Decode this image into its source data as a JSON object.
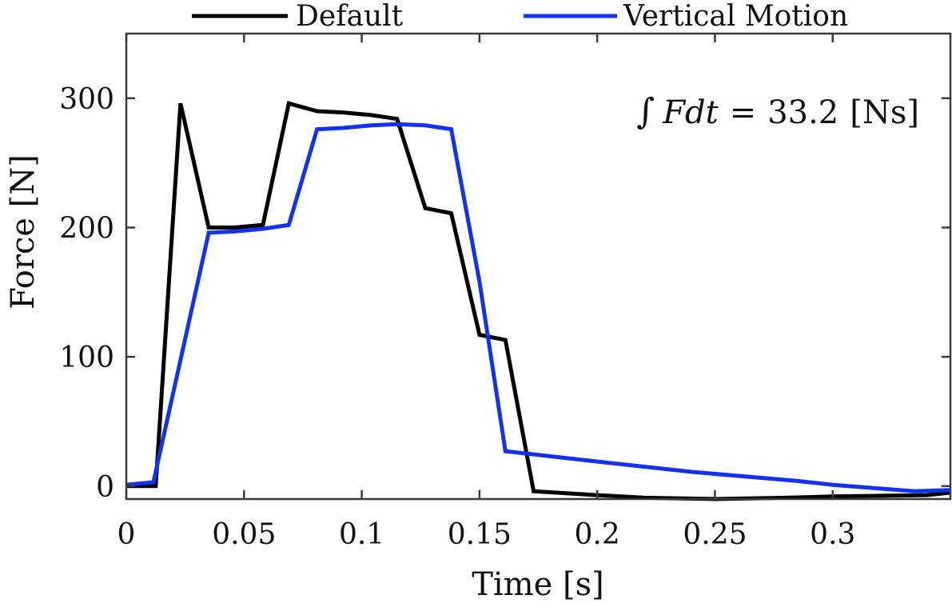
{
  "chart_data": {
    "type": "line",
    "title": "",
    "xlabel": "Time [s]",
    "ylabel": "Force [N]",
    "xlim": [
      0,
      0.35
    ],
    "ylim": [
      -10,
      350
    ],
    "xticks": [
      0,
      0.05,
      0.1,
      0.15,
      0.2,
      0.25,
      0.3
    ],
    "yticks": [
      0,
      100,
      200,
      300
    ],
    "xtick_labels": [
      "0",
      "0.05",
      "0.1",
      "0.15",
      "0.2",
      "0.25",
      "0.3"
    ],
    "ytick_labels": [
      "0",
      "100",
      "200",
      "300"
    ],
    "grid": false,
    "box": true,
    "legend_position": "top",
    "annotation": {
      "integral": "∫",
      "integrand": "Fdt",
      "equals": "=",
      "value": "33.2",
      "unit": "[Ns]"
    },
    "series": [
      {
        "name": "Default",
        "color": "#000000",
        "x": [
          0,
          0.0125,
          0.023,
          0.035,
          0.046,
          0.058,
          0.069,
          0.081,
          0.092,
          0.104,
          0.115,
          0.127,
          0.138,
          0.15,
          0.161,
          0.173,
          0.2,
          0.22,
          0.25,
          0.28,
          0.3,
          0.34,
          0.35
        ],
        "y": [
          0,
          0,
          296,
          200,
          200,
          202,
          296,
          290,
          289,
          287,
          284,
          215,
          211,
          117,
          113,
          -4,
          -7,
          -9,
          -10,
          -9,
          -8,
          -7,
          -5
        ]
      },
      {
        "name": "Vertical Motion",
        "color": "#1232ee",
        "x": [
          0,
          0.0115,
          0.035,
          0.046,
          0.058,
          0.069,
          0.081,
          0.092,
          0.104,
          0.115,
          0.127,
          0.138,
          0.15,
          0.161,
          0.2,
          0.24,
          0.285,
          0.3,
          0.335,
          0.35
        ],
        "y": [
          1,
          3,
          196,
          197,
          199,
          202,
          276,
          277,
          279,
          280,
          279,
          276,
          158,
          27,
          19,
          11,
          4,
          1,
          -4,
          -3
        ]
      }
    ]
  }
}
